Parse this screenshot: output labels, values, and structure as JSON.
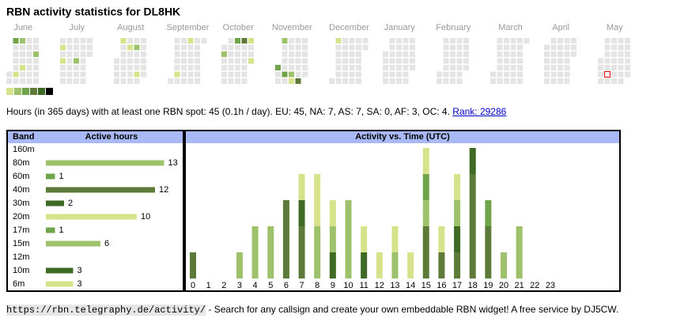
{
  "title": "RBN activity statistics for DL8HK",
  "calendar": {
    "empty_color": "#e4e4e4",
    "level_colors": [
      "#d6e38a",
      "#9dc26b",
      "#6fa44a",
      "#5e7a39",
      "#3e6a26",
      "#000000"
    ],
    "months": [
      {
        "name": "June",
        "offset": 5,
        "days": 30,
        "active": [
          [
            3,
            3
          ],
          [
            8,
            1
          ],
          [
            10,
            2
          ],
          [
            14,
            1
          ],
          [
            26,
            2
          ]
        ]
      },
      {
        "name": "July",
        "offset": 0,
        "days": 31,
        "active": [
          [
            2,
            1
          ],
          [
            4,
            1
          ],
          [
            18,
            2
          ]
        ]
      },
      {
        "name": "August",
        "offset": 3,
        "days": 31,
        "active": [
          [
            5,
            1
          ],
          [
            13,
            1
          ],
          [
            20,
            2
          ],
          [
            24,
            1
          ]
        ]
      },
      {
        "name": "September",
        "offset": 6,
        "days": 30,
        "active": [
          [
            7,
            1
          ],
          [
            16,
            1
          ]
        ]
      },
      {
        "name": "October",
        "offset": 1,
        "days": 31,
        "active": [
          [
            2,
            2
          ],
          [
            14,
            3
          ],
          [
            21,
            4
          ],
          [
            28,
            1
          ],
          [
            31,
            1
          ]
        ]
      },
      {
        "name": "November",
        "offset": 4,
        "days": 30,
        "active": [
          [
            1,
            3
          ],
          [
            4,
            2
          ],
          [
            9,
            3
          ],
          [
            16,
            2
          ],
          [
            17,
            1
          ],
          [
            24,
            4
          ]
        ]
      },
      {
        "name": "December",
        "offset": 6,
        "days": 31,
        "active": [
          [
            2,
            1
          ]
        ]
      },
      {
        "name": "January",
        "offset": 2,
        "days": 31,
        "active": []
      },
      {
        "name": "February",
        "offset": 5,
        "days": 28,
        "active": []
      },
      {
        "name": "March",
        "offset": 5,
        "days": 31,
        "active": []
      },
      {
        "name": "April",
        "offset": 1,
        "days": 30,
        "active": []
      },
      {
        "name": "May",
        "offset": 3,
        "days": 31,
        "active": [],
        "today": 10
      }
    ]
  },
  "summary": "Hours (in 365 days) with at least one RBN spot: 45 (0.1h / day). EU: 45, NA: 7, AS: 7, SA: 0, AF: 3, OC: 4.",
  "rank_link": "Rank: 29286",
  "bands_table": {
    "headers": [
      "Band",
      "Active hours"
    ],
    "rows": [
      {
        "band": "160m",
        "hours": null,
        "color": "#9dc26b"
      },
      {
        "band": "80m",
        "hours": 13,
        "color": "#9dc26b"
      },
      {
        "band": "60m",
        "hours": 1,
        "color": "#6fa44a"
      },
      {
        "band": "40m",
        "hours": 12,
        "color": "#5e7a39"
      },
      {
        "band": "30m",
        "hours": 2,
        "color": "#3e6a26"
      },
      {
        "band": "20m",
        "hours": 10,
        "color": "#d6e38a"
      },
      {
        "band": "17m",
        "hours": 1,
        "color": "#6fa44a"
      },
      {
        "band": "15m",
        "hours": 6,
        "color": "#9dc26b"
      },
      {
        "band": "12m",
        "hours": null,
        "color": "#9dc26b"
      },
      {
        "band": "10m",
        "hours": 3,
        "color": "#3e6a26"
      },
      {
        "band": "6m",
        "hours": 3,
        "color": "#d6e38a"
      }
    ]
  },
  "activity": {
    "title": "Activity vs. Time (UTC)",
    "categories": [
      0,
      1,
      2,
      3,
      4,
      5,
      6,
      7,
      8,
      9,
      10,
      11,
      12,
      13,
      14,
      15,
      16,
      17,
      18,
      19,
      20,
      21,
      22,
      23
    ],
    "series": [
      {
        "name": "40m",
        "color": "#5e7a39",
        "values": [
          1,
          0,
          0,
          0,
          0,
          0,
          3,
          2,
          0,
          0,
          0,
          0,
          0,
          0,
          0,
          2,
          1,
          1,
          4,
          2,
          0,
          0,
          0,
          0
        ]
      },
      {
        "name": "30m",
        "color": "#3e6a26",
        "values": [
          0,
          0,
          0,
          0,
          0,
          0,
          0,
          1,
          0,
          1,
          0,
          1,
          0,
          0,
          0,
          0,
          0,
          1,
          1,
          0,
          0,
          0,
          0,
          0
        ]
      },
      {
        "name": "80m",
        "color": "#9dc26b",
        "values": [
          0,
          0,
          0,
          1,
          2,
          2,
          0,
          0,
          2,
          1,
          3,
          0,
          0,
          1,
          0,
          1,
          0,
          1,
          0,
          0,
          1,
          2,
          0,
          0
        ]
      },
      {
        "name": "60m",
        "color": "#6fa44a",
        "values": [
          0,
          0,
          0,
          0,
          0,
          0,
          0,
          0,
          0,
          0,
          0,
          0,
          0,
          0,
          0,
          1,
          0,
          0,
          0,
          1,
          0,
          0,
          0,
          0
        ]
      },
      {
        "name": "20m",
        "color": "#d6e38a",
        "values": [
          0,
          0,
          0,
          0,
          0,
          0,
          0,
          1,
          2,
          1,
          0,
          1,
          1,
          1,
          1,
          1,
          1,
          1,
          0,
          0,
          0,
          0,
          0,
          0
        ]
      }
    ]
  },
  "footer": {
    "url": "https://rbn.telegraphy.de/activity/",
    "text": " - Search for any callsign and create your own embeddable RBN widget! A free service by DJ5CW."
  }
}
